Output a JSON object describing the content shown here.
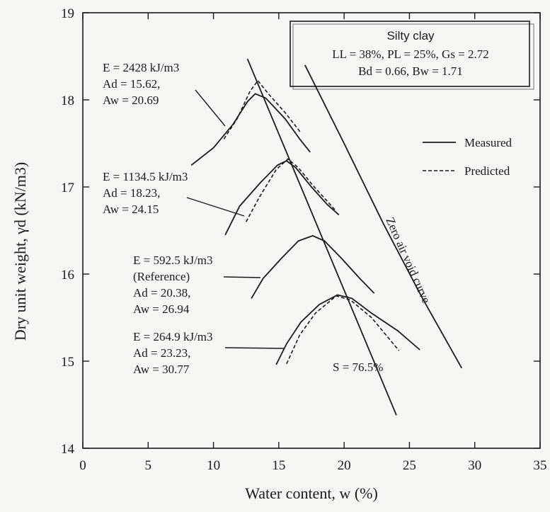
{
  "chart_data": {
    "type": "line",
    "title": "",
    "xlabel": "Water content, w (%)",
    "ylabel": "Dry unit weight, γd (kN/m3)",
    "xlim": [
      0,
      35
    ],
    "ylim": [
      14,
      19
    ],
    "x_ticks": [
      "0",
      "5",
      "10",
      "15",
      "20",
      "25",
      "30",
      "35"
    ],
    "y_ticks": [
      "14",
      "15",
      "16",
      "17",
      "18",
      "19"
    ],
    "legend": {
      "placement": "right",
      "entries": [
        {
          "label": "Measured",
          "style": "solid"
        },
        {
          "label": "Predicted",
          "style": "dashed"
        }
      ]
    },
    "info_box": {
      "title": "Silty clay",
      "line1": "LL = 38%, PL = 25%, Gs = 2.72",
      "line2": "Bd = 0.66, Bw = 1.71"
    },
    "series": [
      {
        "energy_label": "E = 2428 kJ/m3",
        "ad": "Ad = 15.62,",
        "aw": "Aw = 20.69",
        "measured": [
          [
            8.3,
            17.25
          ],
          [
            10,
            17.45
          ],
          [
            11.5,
            17.72
          ],
          [
            12.6,
            17.98
          ],
          [
            13.2,
            18.07
          ],
          [
            14,
            18.02
          ],
          [
            15.5,
            17.78
          ],
          [
            16.6,
            17.55
          ],
          [
            17.4,
            17.4
          ]
        ],
        "predicted": [
          [
            10.8,
            17.55
          ],
          [
            11.8,
            17.78
          ],
          [
            12.8,
            18.1
          ],
          [
            13.4,
            18.22
          ],
          [
            14.2,
            18.07
          ],
          [
            15.5,
            17.85
          ],
          [
            16.7,
            17.62
          ]
        ]
      },
      {
        "energy_label": "E = 1134.5 kJ/m3",
        "ad": "Ad = 18.23,",
        "aw": "Aw = 24.15",
        "measured": [
          [
            10.9,
            16.45
          ],
          [
            12,
            16.78
          ],
          [
            13.6,
            17.05
          ],
          [
            14.9,
            17.25
          ],
          [
            15.6,
            17.3
          ],
          [
            16.3,
            17.22
          ],
          [
            17.5,
            17.0
          ],
          [
            18.7,
            16.8
          ],
          [
            19.6,
            16.68
          ]
        ],
        "predicted": [
          [
            12.5,
            16.6
          ],
          [
            13.5,
            16.88
          ],
          [
            14.8,
            17.2
          ],
          [
            15.7,
            17.32
          ],
          [
            16.5,
            17.22
          ],
          [
            17.6,
            17.02
          ],
          [
            19.4,
            16.72
          ]
        ]
      },
      {
        "energy_label": "E = 592.5 kJ/m3",
        "note": "(Reference)",
        "ad": "Ad = 20.38,",
        "aw": "Aw = 26.94",
        "measured": [
          [
            12.9,
            15.72
          ],
          [
            13.8,
            15.95
          ],
          [
            15.2,
            16.18
          ],
          [
            16.5,
            16.38
          ],
          [
            17.6,
            16.44
          ],
          [
            18.5,
            16.38
          ],
          [
            19.8,
            16.18
          ],
          [
            21.2,
            15.95
          ],
          [
            22.3,
            15.78
          ]
        ],
        "predicted": []
      },
      {
        "energy_label": "E = 264.9 kJ/m3",
        "ad": "Ad = 23.23,",
        "aw": "Aw = 30.77",
        "measured": [
          [
            14.8,
            14.96
          ],
          [
            15.6,
            15.2
          ],
          [
            16.7,
            15.45
          ],
          [
            18.1,
            15.65
          ],
          [
            19.5,
            15.76
          ],
          [
            20.6,
            15.72
          ],
          [
            22.1,
            15.55
          ],
          [
            24.1,
            15.35
          ],
          [
            25.8,
            15.13
          ]
        ],
        "predicted": [
          [
            15.6,
            14.97
          ],
          [
            16.6,
            15.3
          ],
          [
            17.8,
            15.55
          ],
          [
            19.4,
            15.75
          ],
          [
            20.5,
            15.7
          ],
          [
            22.1,
            15.5
          ],
          [
            24.2,
            15.12
          ]
        ]
      }
    ],
    "reference_lines": [
      {
        "label": "S = 76.5%",
        "points": [
          [
            12.6,
            18.47
          ],
          [
            24.0,
            14.38
          ]
        ]
      },
      {
        "label": "Zero air void curve",
        "points": [
          [
            17.0,
            18.4
          ],
          [
            20.0,
            17.5
          ],
          [
            23.0,
            16.58
          ],
          [
            26.0,
            15.72
          ],
          [
            29.0,
            14.92
          ]
        ]
      }
    ]
  }
}
